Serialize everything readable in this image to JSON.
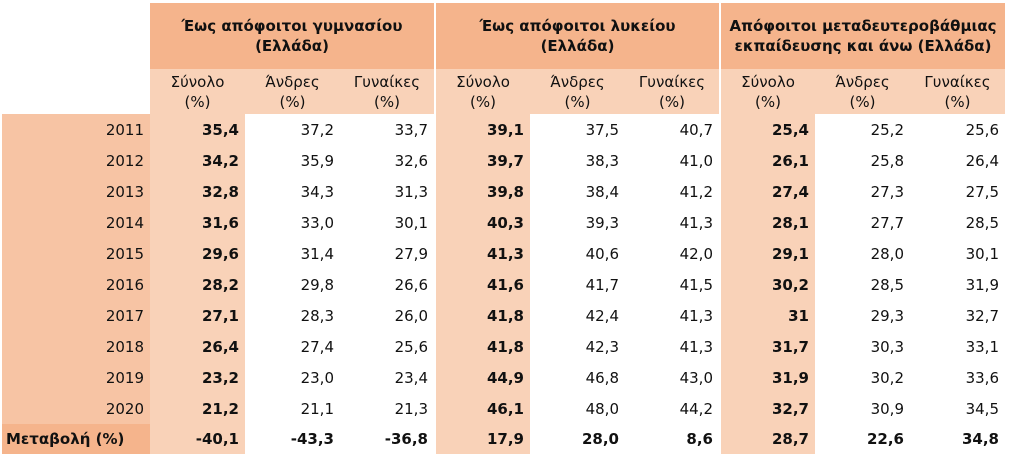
{
  "header": {
    "groups": [
      "Έως απόφοιτοι γυμνασίου (Ελλάδα)",
      "Έως απόφοιτοι λυκείου (Ελλάδα)",
      "Απόφοιτοι μεταδευτεροβάθμιας εκπαίδευσης και άνω (Ελλάδα)"
    ],
    "sub": {
      "total": [
        "Σύνολο",
        "(%)"
      ],
      "men": [
        "Άνδρες",
        "(%)"
      ],
      "women": [
        "Γυναίκες",
        "(%)"
      ]
    }
  },
  "rows": [
    {
      "year": "2011",
      "v": [
        "35,4",
        "37,2",
        "33,7",
        "39,1",
        "37,5",
        "40,7",
        "25,4",
        "25,2",
        "25,6"
      ]
    },
    {
      "year": "2012",
      "v": [
        "34,2",
        "35,9",
        "32,6",
        "39,7",
        "38,3",
        "41,0",
        "26,1",
        "25,8",
        "26,4"
      ]
    },
    {
      "year": "2013",
      "v": [
        "32,8",
        "34,3",
        "31,3",
        "39,8",
        "38,4",
        "41,2",
        "27,4",
        "27,3",
        "27,5"
      ]
    },
    {
      "year": "2014",
      "v": [
        "31,6",
        "33,0",
        "30,1",
        "40,3",
        "39,3",
        "41,3",
        "28,1",
        "27,7",
        "28,5"
      ]
    },
    {
      "year": "2015",
      "v": [
        "29,6",
        "31,4",
        "27,9",
        "41,3",
        "40,6",
        "42,0",
        "29,1",
        "28,0",
        "30,1"
      ]
    },
    {
      "year": "2016",
      "v": [
        "28,2",
        "29,8",
        "26,6",
        "41,6",
        "41,7",
        "41,5",
        "30,2",
        "28,5",
        "31,9"
      ]
    },
    {
      "year": "2017",
      "v": [
        "27,1",
        "28,3",
        "26,0",
        "41,8",
        "42,4",
        "41,3",
        "31",
        "29,3",
        "32,7"
      ]
    },
    {
      "year": "2018",
      "v": [
        "26,4",
        "27,4",
        "25,6",
        "41,8",
        "42,3",
        "41,3",
        "31,7",
        "30,3",
        "33,1"
      ]
    },
    {
      "year": "2019",
      "v": [
        "23,2",
        "23,0",
        "23,4",
        "44,9",
        "46,8",
        "43,0",
        "31,9",
        "30,2",
        "33,6"
      ]
    },
    {
      "year": "2020",
      "v": [
        "21,2",
        "21,1",
        "21,3",
        "46,1",
        "48,0",
        "44,2",
        "32,7",
        "30,9",
        "34,5"
      ]
    }
  ],
  "change": {
    "label": "Μεταβολή (%)",
    "v": [
      "-40,1",
      "-43,3",
      "-36,8",
      "17,9",
      "28,0",
      "8,6",
      "28,7",
      "22,6",
      "34,8"
    ]
  },
  "colors": {
    "group_header": "#f5b48c",
    "sub_header": "#f9d2b8",
    "year_column": "#f7c4a4"
  }
}
